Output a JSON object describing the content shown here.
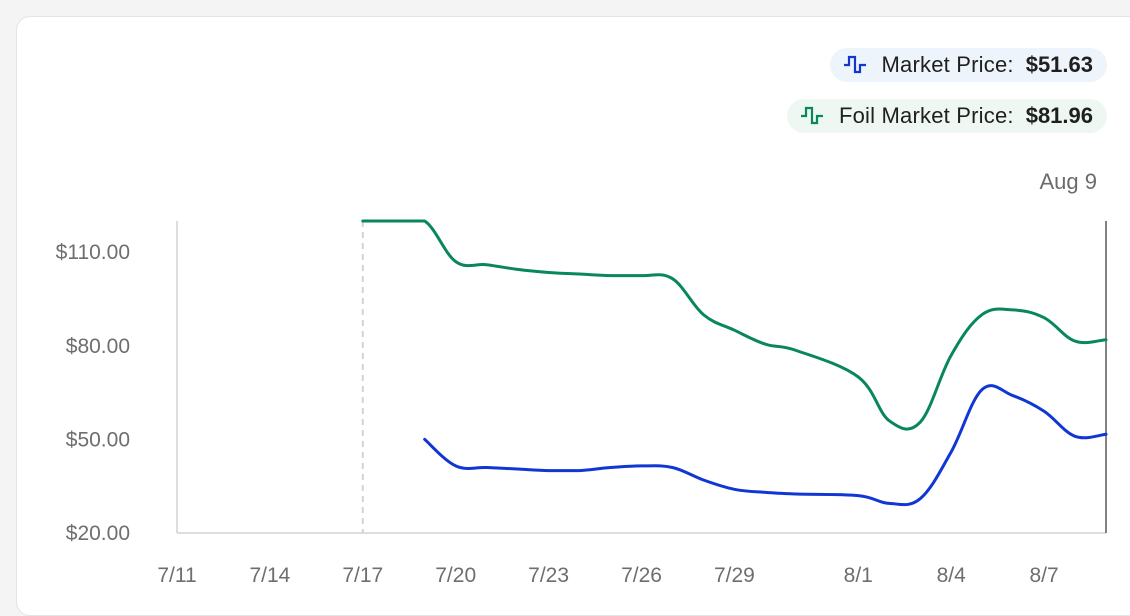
{
  "legend": {
    "market_label": "Market Price:",
    "market_value": "$51.63",
    "foil_label": "Foil Market Price:",
    "foil_value": "$81.96"
  },
  "hover_date": "Aug 9",
  "colors": {
    "market": "#1037d4",
    "foil": "#08875a",
    "axis": "#d3d3d3",
    "cursor": "#5a5a5a"
  },
  "chart_data": {
    "type": "line",
    "x_ticks": [
      "7/11",
      "7/14",
      "7/17",
      "7/20",
      "7/23",
      "7/26",
      "7/29",
      "8/1",
      "8/4",
      "8/7"
    ],
    "y_ticks": [
      "$20.00",
      "$50.00",
      "$80.00",
      "$110.00"
    ],
    "y_tick_values": [
      20,
      50,
      80,
      110
    ],
    "ylim": [
      20,
      120
    ],
    "x_domain": [
      "7/11",
      "8/9"
    ],
    "dashed_marker": "7/17",
    "cursor": "8/9",
    "series": [
      {
        "name": "Foil Market Price",
        "color_key": "foil",
        "points": [
          [
            "7/17",
            120
          ],
          [
            "7/18",
            120
          ],
          [
            "7/19",
            120
          ],
          [
            "7/20",
            107
          ],
          [
            "7/21",
            106
          ],
          [
            "7/22",
            104.5
          ],
          [
            "7/23",
            103.5
          ],
          [
            "7/24",
            103
          ],
          [
            "7/25",
            102.5
          ],
          [
            "7/26",
            102.5
          ],
          [
            "7/27",
            101.5
          ],
          [
            "7/28",
            90
          ],
          [
            "7/29",
            85
          ],
          [
            "7/30",
            80.5
          ],
          [
            "7/31",
            78.5
          ],
          [
            "8/1",
            70
          ],
          [
            "8/2",
            56
          ],
          [
            "8/3",
            55.5
          ],
          [
            "8/4",
            77
          ],
          [
            "8/5",
            90
          ],
          [
            "8/6",
            91.5
          ],
          [
            "8/7",
            89
          ],
          [
            "8/8",
            81.5
          ],
          [
            "8/9",
            81.96
          ]
        ]
      },
      {
        "name": "Market Price",
        "color_key": "market",
        "points": [
          [
            "7/19",
            50
          ],
          [
            "7/20",
            41.5
          ],
          [
            "7/21",
            41
          ],
          [
            "7/22",
            40.5
          ],
          [
            "7/23",
            40
          ],
          [
            "7/24",
            40
          ],
          [
            "7/25",
            41
          ],
          [
            "7/26",
            41.5
          ],
          [
            "7/27",
            41
          ],
          [
            "7/28",
            37
          ],
          [
            "7/29",
            34
          ],
          [
            "7/30",
            33
          ],
          [
            "7/31",
            32.5
          ],
          [
            "8/1",
            32
          ],
          [
            "8/2",
            29.5
          ],
          [
            "8/3",
            31
          ],
          [
            "8/4",
            46
          ],
          [
            "8/5",
            66
          ],
          [
            "8/6",
            64
          ],
          [
            "8/7",
            59
          ],
          [
            "8/8",
            51
          ],
          [
            "8/9",
            51.63
          ]
        ]
      }
    ]
  }
}
